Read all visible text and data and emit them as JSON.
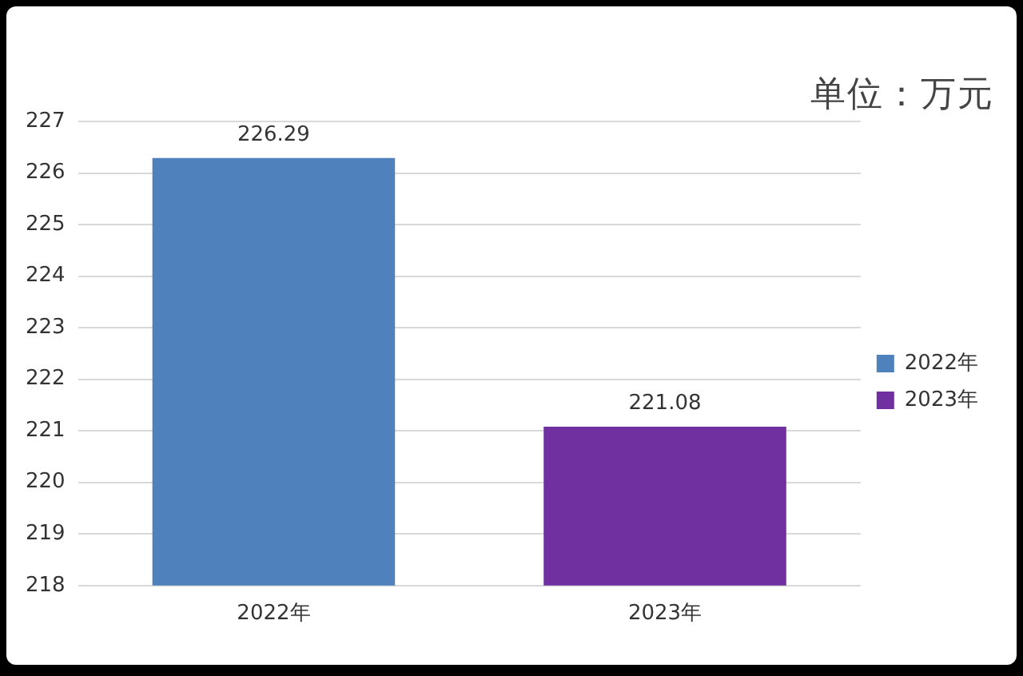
{
  "chart_data": {
    "type": "bar",
    "categories": [
      "2022年",
      "2023年"
    ],
    "series": [
      {
        "name": "2022年",
        "color": "#4f81bd",
        "values": [
          226.29,
          null
        ]
      },
      {
        "name": "2023年",
        "color": "#7030a0",
        "values": [
          null,
          221.08
        ]
      }
    ],
    "ylim": [
      218,
      227
    ],
    "yticks": [
      218,
      219,
      220,
      221,
      222,
      223,
      224,
      225,
      226,
      227
    ],
    "grid": "y",
    "legend": "right",
    "data_labels": true,
    "annotations": [
      "单位：万元"
    ]
  }
}
